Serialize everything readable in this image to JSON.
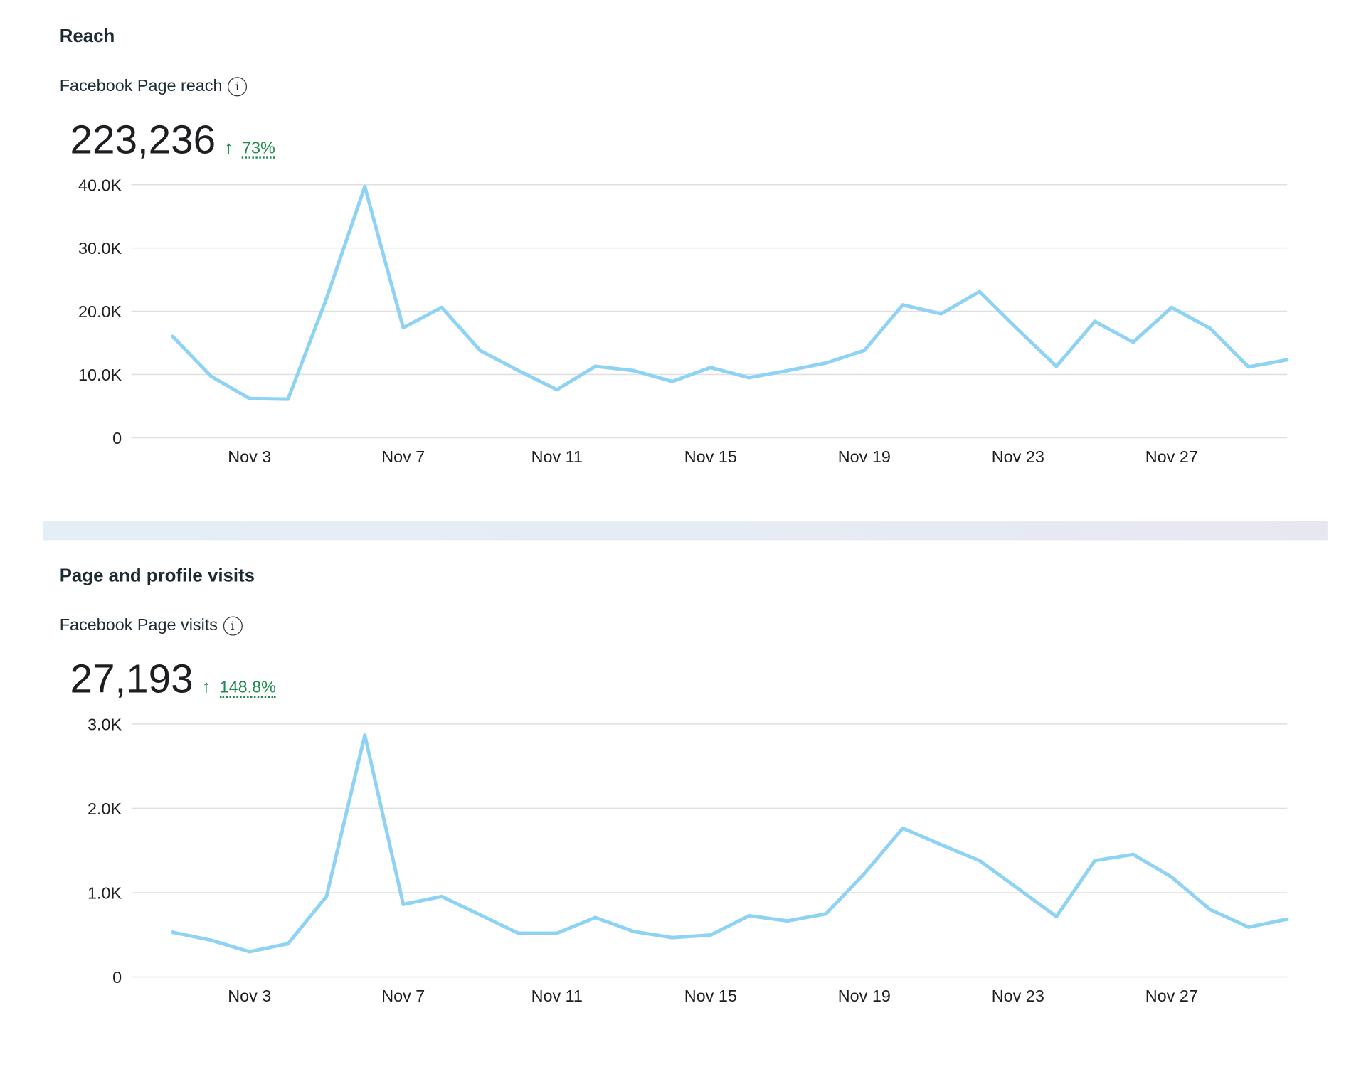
{
  "sections": [
    {
      "title": "Reach",
      "metric_label": "Facebook Page reach",
      "total": "223,236",
      "change": "73%",
      "change_direction": "up"
    },
    {
      "title": "Page and profile visits",
      "metric_label": "Facebook Page visits",
      "total": "27,193",
      "change": "148.8%",
      "change_direction": "up"
    }
  ],
  "colors": {
    "line": "#8fd3f4",
    "positive": "#1e8a4c",
    "grid": "#e0e0e0"
  },
  "chart_data": [
    {
      "type": "line",
      "title": "Facebook Page reach",
      "x": [
        "Nov 1",
        "Nov 2",
        "Nov 3",
        "Nov 4",
        "Nov 5",
        "Nov 6",
        "Nov 7",
        "Nov 8",
        "Nov 9",
        "Nov 10",
        "Nov 11",
        "Nov 12",
        "Nov 13",
        "Nov 14",
        "Nov 15",
        "Nov 16",
        "Nov 17",
        "Nov 18",
        "Nov 19",
        "Nov 20",
        "Nov 21",
        "Nov 22",
        "Nov 23",
        "Nov 24",
        "Nov 25",
        "Nov 26",
        "Nov 27",
        "Nov 28",
        "Nov 29",
        "Nov 30"
      ],
      "values": [
        16000,
        9700,
        6200,
        6100,
        22000,
        39700,
        17400,
        20600,
        13800,
        10600,
        7600,
        11300,
        10600,
        8900,
        11100,
        9500,
        10600,
        11800,
        13800,
        21000,
        19600,
        23100,
        17100,
        11300,
        18400,
        15100,
        20600,
        17300,
        11200,
        12300
      ],
      "xticks": [
        "Nov 3",
        "Nov 7",
        "Nov 11",
        "Nov 15",
        "Nov 19",
        "Nov 23",
        "Nov 27"
      ],
      "yticks": [
        "0",
        "10.0K",
        "20.0K",
        "30.0K",
        "40.0K"
      ],
      "ylim": [
        0,
        40000
      ],
      "grid": true
    },
    {
      "type": "line",
      "title": "Facebook Page visits",
      "x": [
        "Nov 1",
        "Nov 2",
        "Nov 3",
        "Nov 4",
        "Nov 5",
        "Nov 6",
        "Nov 7",
        "Nov 8",
        "Nov 9",
        "Nov 10",
        "Nov 11",
        "Nov 12",
        "Nov 13",
        "Nov 14",
        "Nov 15",
        "Nov 16",
        "Nov 17",
        "Nov 18",
        "Nov 19",
        "Nov 20",
        "Nov 21",
        "Nov 22",
        "Nov 23",
        "Nov 24",
        "Nov 25",
        "Nov 26",
        "Nov 27",
        "Nov 28",
        "Nov 29",
        "Nov 30"
      ],
      "values": [
        530,
        436,
        300,
        395,
        955,
        2866,
        862,
        955,
        737,
        519,
        519,
        706,
        540,
        467,
        498,
        727,
        665,
        748,
        1225,
        1765,
        1568,
        1381,
        1049,
        716,
        1381,
        1454,
        1184,
        800,
        592,
        685
      ],
      "xticks": [
        "Nov 3",
        "Nov 7",
        "Nov 11",
        "Nov 15",
        "Nov 19",
        "Nov 23",
        "Nov 27"
      ],
      "yticks": [
        "0",
        "1.0K",
        "2.0K",
        "3.0K"
      ],
      "ylim": [
        0,
        3000
      ],
      "grid": true
    }
  ]
}
